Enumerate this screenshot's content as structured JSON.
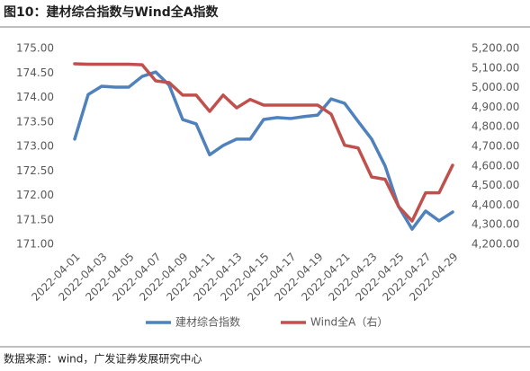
{
  "chart_data": {
    "type": "line",
    "title": "图10：建材综合指数与Wind全A指数",
    "source": "数据来源：wind，广发证券发展研究中心",
    "categories": [
      "2022-04-01",
      null,
      "2022-04-03",
      null,
      "2022-04-05",
      null,
      "2022-04-07",
      null,
      "2022-04-09",
      null,
      "2022-04-11",
      null,
      "2022-04-13",
      null,
      "2022-04-15",
      null,
      "2022-04-17",
      null,
      "2022-04-19",
      null,
      "2022-04-21",
      null,
      "2022-04-23",
      null,
      "2022-04-25",
      null,
      "2022-04-27",
      null,
      "2022-04-29"
    ],
    "series": [
      {
        "name": "建材综合指数",
        "color": "#4f81bd",
        "values": [
          173.15,
          174.06,
          174.23,
          174.21,
          174.21,
          174.43,
          174.52,
          174.25,
          173.55,
          173.46,
          172.83,
          173.02,
          173.15,
          173.15,
          173.55,
          173.59,
          173.57,
          173.61,
          173.64,
          173.97,
          173.88,
          173.51,
          173.15,
          172.6,
          171.77,
          171.31,
          171.68,
          171.48,
          171.66
        ]
      },
      {
        "name": "Wind全A（右）",
        "color": "#c0504d",
        "axis": "y2",
        "values": [
          5122,
          5120,
          5120,
          5120,
          5120,
          5117,
          5035,
          5026,
          4962,
          4962,
          4879,
          4962,
          4897,
          4940,
          4911,
          4911,
          4911,
          4911,
          4911,
          4865,
          4706,
          4692,
          4544,
          4532,
          4393,
          4319,
          4463,
          4463,
          4604
        ]
      }
    ],
    "ylim": [
      171,
      175
    ],
    "yticks": [
      {
        "value": 171,
        "label": "171.00"
      },
      {
        "value": 171.5,
        "label": "171.50"
      },
      {
        "value": 172,
        "label": "172.00"
      },
      {
        "value": 172.5,
        "label": "172.50"
      },
      {
        "value": 173,
        "label": "173.00"
      },
      {
        "value": 173.5,
        "label": "173.50"
      },
      {
        "value": 174,
        "label": "174.00"
      },
      {
        "value": 174.5,
        "label": "174.50"
      },
      {
        "value": 175,
        "label": "175.00"
      }
    ],
    "y2lim": [
      4200,
      5200
    ],
    "y2ticks": [
      {
        "value": 4200,
        "label": "4,200.00"
      },
      {
        "value": 4300,
        "label": "4,300.00"
      },
      {
        "value": 4400,
        "label": "4,400.00"
      },
      {
        "value": 4500,
        "label": "4,500.00"
      },
      {
        "value": 4600,
        "label": "4,600.00"
      },
      {
        "value": 4700,
        "label": "4,700.00"
      },
      {
        "value": 4800,
        "label": "4,800.00"
      },
      {
        "value": 4900,
        "label": "4,900.00"
      },
      {
        "value": 5000,
        "label": "5,000.00"
      },
      {
        "value": 5100,
        "label": "5,100.00"
      },
      {
        "value": 5200,
        "label": "5,200.00"
      }
    ],
    "legend": "bottom",
    "grid": false
  }
}
